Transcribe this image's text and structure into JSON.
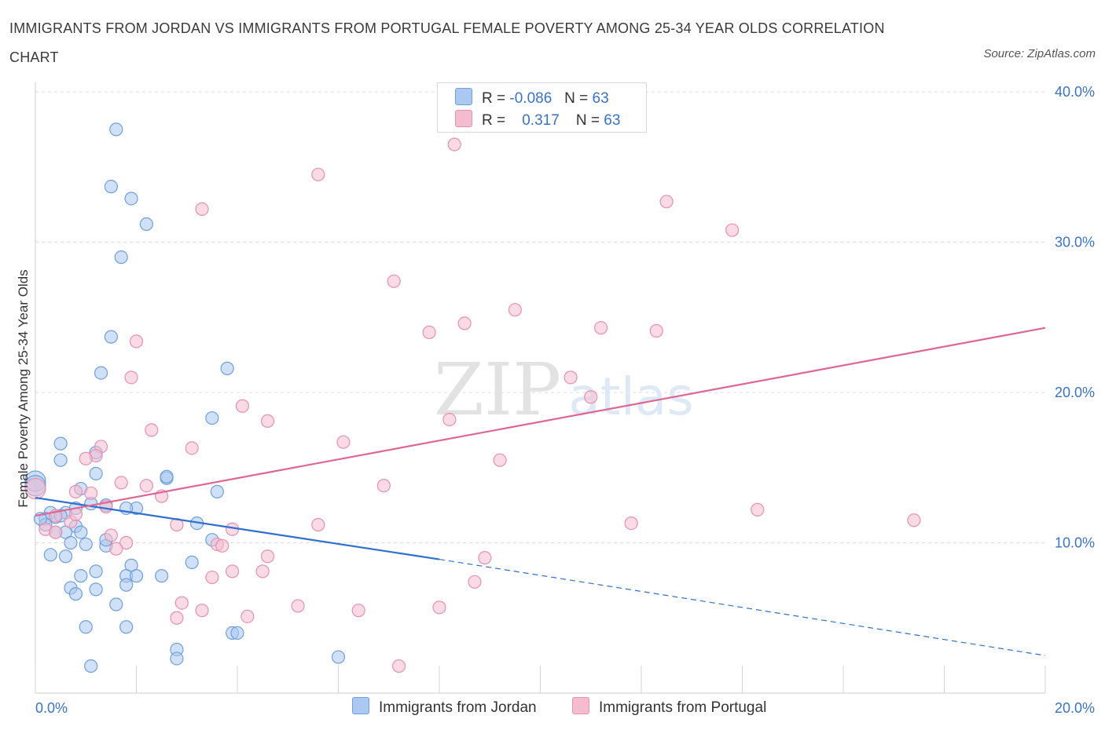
{
  "title": "IMMIGRANTS FROM JORDAN VS IMMIGRANTS FROM PORTUGAL FEMALE POVERTY AMONG 25-34 YEAR OLDS CORRELATION CHART",
  "source": "Source: ZipAtlas.com",
  "watermark": {
    "zip": "ZIP",
    "atlas": "atlas"
  },
  "legend": {
    "jordan": {
      "r_label": "R =",
      "r_value": "-0.086",
      "n_label": "N =",
      "n_value": "63"
    },
    "portugal": {
      "r_label": "R =",
      "r_value": "0.317",
      "n_label": "N =",
      "n_value": "63"
    }
  },
  "bottom_legend": {
    "jordan": "Immigrants from Jordan",
    "portugal": "Immigrants from Portugal"
  },
  "colors": {
    "jordan_fill": "#aac8f0",
    "jordan_stroke": "#6f9fdc",
    "jordan_line": "#2f6fcf",
    "portugal_fill": "#f5bcd0",
    "portugal_stroke": "#e691b0",
    "portugal_line": "#e06692",
    "axis_label": "#3a72c4",
    "grid": "#dddddd"
  },
  "chart_data": {
    "type": "scatter",
    "title": "IMMIGRANTS FROM JORDAN VS IMMIGRANTS FROM PORTUGAL FEMALE POVERTY AMONG 25-34 YEAR OLDS CORRELATION CHART",
    "xlabel": "",
    "ylabel": "Female Poverty Among 25-34 Year Olds",
    "xlim": [
      0,
      20
    ],
    "ylim": [
      0,
      40
    ],
    "x_tick_labels": [
      {
        "value": 0,
        "label": "0.0%"
      },
      {
        "value": 20,
        "label": "20.0%"
      }
    ],
    "y_tick_labels": [
      {
        "value": 10,
        "label": "10.0%"
      },
      {
        "value": 20,
        "label": "20.0%"
      },
      {
        "value": 30,
        "label": "30.0%"
      },
      {
        "value": 40,
        "label": "40.0%"
      }
    ],
    "series": [
      {
        "name": "Immigrants from Jordan",
        "r": -0.086,
        "n": 63,
        "trend": {
          "x0": 0,
          "y0": 13.0,
          "x1": 8.0,
          "y1": 8.9,
          "dashed_to_x": 20,
          "dashed_to_y": 2.5
        },
        "points": [
          [
            1.6,
            37.5
          ],
          [
            1.5,
            33.7
          ],
          [
            1.9,
            32.9
          ],
          [
            2.2,
            31.2
          ],
          [
            1.7,
            29.0
          ],
          [
            1.5,
            23.7
          ],
          [
            1.3,
            21.3
          ],
          [
            3.8,
            21.6
          ],
          [
            3.5,
            18.3
          ],
          [
            0.5,
            16.6
          ],
          [
            1.2,
            16.0
          ],
          [
            0.5,
            15.5
          ],
          [
            1.2,
            14.6
          ],
          [
            2.6,
            14.3
          ],
          [
            0.0,
            14.1
          ],
          [
            0.0,
            13.8
          ],
          [
            0.9,
            13.6
          ],
          [
            3.6,
            13.4
          ],
          [
            1.4,
            12.5
          ],
          [
            2.0,
            12.3
          ],
          [
            0.6,
            12.0
          ],
          [
            0.8,
            12.3
          ],
          [
            0.3,
            12.0
          ],
          [
            0.4,
            11.7
          ],
          [
            0.2,
            11.6
          ],
          [
            0.5,
            11.8
          ],
          [
            0.8,
            11.1
          ],
          [
            0.2,
            11.2
          ],
          [
            1.8,
            12.3
          ],
          [
            3.2,
            11.3
          ],
          [
            0.6,
            10.7
          ],
          [
            0.4,
            10.7
          ],
          [
            0.9,
            10.7
          ],
          [
            0.7,
            10.0
          ],
          [
            1.0,
            9.9
          ],
          [
            1.4,
            9.8
          ],
          [
            1.4,
            10.2
          ],
          [
            3.5,
            10.2
          ],
          [
            0.3,
            9.2
          ],
          [
            0.6,
            9.1
          ],
          [
            1.9,
            8.5
          ],
          [
            3.1,
            8.7
          ],
          [
            1.2,
            8.1
          ],
          [
            0.9,
            7.8
          ],
          [
            1.8,
            7.8
          ],
          [
            2.0,
            7.8
          ],
          [
            2.5,
            7.8
          ],
          [
            1.8,
            7.2
          ],
          [
            0.7,
            7.0
          ],
          [
            1.2,
            6.9
          ],
          [
            0.8,
            6.6
          ],
          [
            1.6,
            5.9
          ],
          [
            1.0,
            4.4
          ],
          [
            1.8,
            4.4
          ],
          [
            3.9,
            4.0
          ],
          [
            4.0,
            4.0
          ],
          [
            2.8,
            2.9
          ],
          [
            2.8,
            2.3
          ],
          [
            6.0,
            2.4
          ],
          [
            1.1,
            1.8
          ],
          [
            0.1,
            11.6
          ],
          [
            1.1,
            12.6
          ],
          [
            2.6,
            14.4
          ]
        ]
      },
      {
        "name": "Immigrants from Portugal",
        "r": 0.317,
        "n": 63,
        "trend": {
          "x0": 0,
          "y0": 11.8,
          "x1": 20,
          "y1": 24.3
        },
        "points": [
          [
            8.3,
            36.5
          ],
          [
            5.6,
            34.5
          ],
          [
            3.3,
            32.2
          ],
          [
            12.5,
            32.7
          ],
          [
            13.8,
            30.8
          ],
          [
            7.1,
            27.4
          ],
          [
            9.5,
            25.5
          ],
          [
            8.5,
            24.6
          ],
          [
            7.8,
            24.0
          ],
          [
            11.2,
            24.3
          ],
          [
            12.3,
            24.1
          ],
          [
            2.0,
            23.4
          ],
          [
            1.9,
            21.0
          ],
          [
            10.6,
            21.0
          ],
          [
            4.1,
            19.1
          ],
          [
            11.0,
            19.7
          ],
          [
            4.6,
            18.1
          ],
          [
            8.2,
            18.2
          ],
          [
            2.3,
            17.5
          ],
          [
            6.1,
            16.7
          ],
          [
            1.3,
            16.4
          ],
          [
            3.1,
            16.3
          ],
          [
            1.2,
            15.8
          ],
          [
            1.0,
            15.6
          ],
          [
            9.2,
            15.5
          ],
          [
            1.7,
            14.0
          ],
          [
            2.2,
            13.8
          ],
          [
            6.9,
            13.8
          ],
          [
            0.0,
            13.6
          ],
          [
            0.8,
            13.4
          ],
          [
            1.1,
            13.3
          ],
          [
            2.5,
            13.1
          ],
          [
            1.4,
            12.4
          ],
          [
            14.3,
            12.2
          ],
          [
            0.4,
            11.8
          ],
          [
            0.7,
            11.4
          ],
          [
            2.8,
            11.2
          ],
          [
            5.6,
            11.2
          ],
          [
            11.8,
            11.3
          ],
          [
            17.4,
            11.5
          ],
          [
            3.9,
            10.9
          ],
          [
            0.2,
            10.9
          ],
          [
            0.4,
            10.7
          ],
          [
            1.8,
            10.0
          ],
          [
            3.6,
            9.9
          ],
          [
            3.7,
            9.8
          ],
          [
            1.6,
            9.6
          ],
          [
            4.6,
            9.1
          ],
          [
            8.9,
            9.0
          ],
          [
            4.5,
            8.1
          ],
          [
            3.9,
            8.1
          ],
          [
            3.5,
            7.7
          ],
          [
            8.7,
            7.4
          ],
          [
            2.9,
            6.0
          ],
          [
            3.3,
            5.5
          ],
          [
            5.2,
            5.8
          ],
          [
            6.4,
            5.5
          ],
          [
            4.2,
            5.1
          ],
          [
            2.8,
            5.0
          ],
          [
            8.0,
            5.7
          ],
          [
            7.2,
            1.8
          ],
          [
            0.8,
            11.9
          ],
          [
            1.5,
            10.5
          ]
        ]
      }
    ]
  }
}
